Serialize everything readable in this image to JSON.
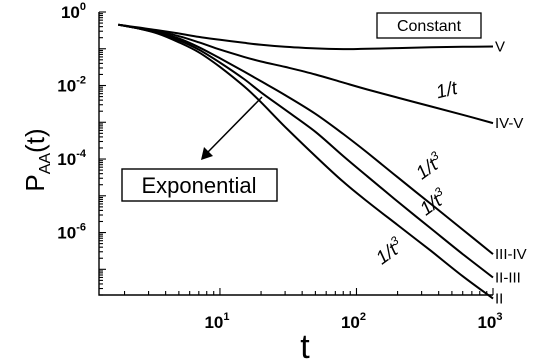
{
  "chart_data": {
    "type": "line",
    "xlabel": "t",
    "ylabel_main": "P",
    "ylabel_sub": "AA",
    "ylabel_tail": "(t)",
    "x_scale": "log",
    "y_scale": "log",
    "xlim": [
      1.3,
      1000
    ],
    "ylim": [
      2e-08,
      1
    ],
    "x_ticks": [
      {
        "value": 10,
        "base": "10",
        "exp": "1"
      },
      {
        "value": 100,
        "base": "10",
        "exp": "2"
      },
      {
        "value": 1000,
        "base": "10",
        "exp": "3"
      }
    ],
    "y_ticks": [
      {
        "value": 1,
        "base": "10",
        "exp": "0"
      },
      {
        "value": 0.01,
        "base": "10",
        "exp": "-2"
      },
      {
        "value": 0.0001,
        "base": "10",
        "exp": "-4"
      },
      {
        "value": 1e-06,
        "base": "10",
        "exp": "-6"
      }
    ],
    "series": [
      {
        "name": "V",
        "x": [
          1.8,
          2.5,
          3.5,
          5,
          7,
          10,
          15,
          20,
          30,
          50,
          80,
          120,
          200,
          350,
          600,
          1000
        ],
        "y": [
          0.45,
          0.38,
          0.32,
          0.26,
          0.21,
          0.175,
          0.145,
          0.128,
          0.113,
          0.102,
          0.098,
          0.1,
          0.104,
          0.11,
          0.113,
          0.115
        ]
      },
      {
        "name": "IV-V",
        "x": [
          1.8,
          2.5,
          3.5,
          5,
          7,
          10,
          15,
          20,
          30,
          50,
          80,
          120,
          200,
          350,
          600,
          1000
        ],
        "y": [
          0.45,
          0.37,
          0.3,
          0.22,
          0.15,
          0.095,
          0.06,
          0.045,
          0.032,
          0.02,
          0.012,
          0.0078,
          0.0047,
          0.0027,
          0.0016,
          0.00095
        ]
      },
      {
        "name": "III-IV",
        "x": [
          1.8,
          2.5,
          3.5,
          5,
          7,
          10,
          15,
          20,
          30,
          50,
          80,
          120,
          200,
          350,
          600,
          1000
        ],
        "y": [
          0.45,
          0.36,
          0.28,
          0.19,
          0.11,
          0.055,
          0.024,
          0.013,
          0.0055,
          0.0017,
          0.00048,
          0.00015,
          3.2e-05,
          6e-06,
          1.2e-06,
          2.6e-07
        ]
      },
      {
        "name": "II-III",
        "x": [
          1.8,
          2.5,
          3.5,
          5,
          7,
          10,
          15,
          20,
          30,
          50,
          80,
          120,
          200,
          350,
          600,
          1000
        ],
        "y": [
          0.45,
          0.36,
          0.27,
          0.17,
          0.095,
          0.042,
          0.015,
          0.0065,
          0.0022,
          0.00055,
          0.00012,
          3.4e-05,
          7e-06,
          1.3e-06,
          2.6e-07,
          6e-08
        ]
      },
      {
        "name": "II",
        "x": [
          1.8,
          2.5,
          3.5,
          5,
          7,
          10,
          15,
          20,
          30,
          50,
          80,
          120,
          200,
          350,
          600,
          1000
        ],
        "y": [
          0.45,
          0.36,
          0.26,
          0.15,
          0.08,
          0.032,
          0.0095,
          0.0035,
          0.00075,
          0.00012,
          2.4e-05,
          7e-06,
          1.6e-06,
          3.2e-07,
          6.5e-08,
          1.6e-08
        ]
      }
    ],
    "annotations": {
      "constant": "Constant",
      "one_over_t": "1/t",
      "one_over_t3_base": "1/t",
      "one_over_t3_exp": "3",
      "exponential": "Exponential"
    }
  }
}
